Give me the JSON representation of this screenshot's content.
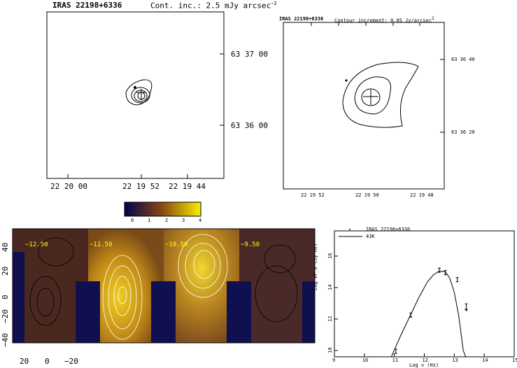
{
  "map1": {
    "title": "IRAS 22198+6336",
    "contour_label": "Cont. inc.: 2.5 mJy arcsec",
    "contour_exp": "−2",
    "x_ticks": [
      "22 20 00",
      "22 19 52",
      "22 19 44"
    ],
    "y_ticks": [
      "63 37 00",
      "63 36 00"
    ]
  },
  "map2": {
    "title": "IRAS 22198+6336",
    "contour_label": "Contour increment: 0.05 Jy/arcsec",
    "contour_exp": "2",
    "x_ticks": [
      "22 19 52",
      "22 19 50",
      "22 19 48"
    ],
    "y_ticks": [
      "63 36 40",
      "63 36 20"
    ]
  },
  "colorbar": {
    "ticks": [
      "0",
      "1",
      "2",
      "3",
      "4"
    ],
    "low": "#000060",
    "mid": "#8a4a10",
    "high": "#f8f000"
  },
  "channels": {
    "labels": [
      "−12.50",
      "−11.50",
      "−10.50",
      "−9.50"
    ],
    "y_ticks": [
      "40",
      "20",
      "0",
      "−20",
      "−40"
    ],
    "x_ticks": [
      "20",
      "0",
      "−20"
    ]
  },
  "chart_data": {
    "type": "scatter",
    "title": "",
    "xlabel": "Log ν (Hz)",
    "ylabel": "Log νF_ν (Jy Hz)",
    "xlim": [
      9,
      15
    ],
    "ylim": [
      9.6,
      17.6
    ],
    "x_ticks": [
      "9",
      "10",
      "11",
      "12",
      "13",
      "14",
      "15"
    ],
    "y_ticks": [
      "10",
      "12",
      "14",
      "16"
    ],
    "legend": {
      "placement": "top-left",
      "entries": [
        "IRAS 22198+6336",
        "43K"
      ]
    },
    "points": [
      {
        "x": 11.05,
        "y": 9.95
      },
      {
        "x": 11.55,
        "y": 12.25
      },
      {
        "x": 12.5,
        "y": 15.1
      },
      {
        "x": 12.7,
        "y": 14.95
      },
      {
        "x": 13.1,
        "y": 14.5
      }
    ],
    "upper_limits": [
      {
        "x": 13.4,
        "y": 12.7
      }
    ],
    "model": {
      "name": "43K",
      "x": [
        10.9,
        11.2,
        11.5,
        11.8,
        12.1,
        12.3,
        12.5,
        12.7,
        12.85,
        13.0,
        13.15,
        13.3,
        13.38
      ],
      "y": [
        9.6,
        10.9,
        12.1,
        13.3,
        14.35,
        14.8,
        15.05,
        15.0,
        14.6,
        13.7,
        12.2,
        10.0,
        9.6
      ]
    }
  }
}
